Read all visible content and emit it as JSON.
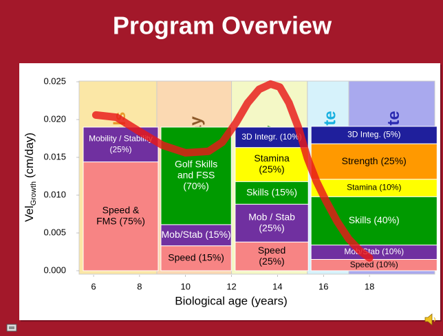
{
  "chart_data": {
    "type": "block",
    "title": "Program Overview",
    "y_label": "Vel",
    "y_label_sub": "Growth",
    "y_label_unit": " (cm/day)",
    "x_label": "Biological age (years)",
    "xlim": [
      5.37,
      20.84
    ],
    "ylim": [
      0,
      0.025
    ],
    "xticks": [
      6,
      8,
      10,
      12,
      14,
      16,
      18
    ],
    "yticks": [
      {
        "value": 0,
        "label": "0.000"
      },
      {
        "value": 0.005,
        "label": "0.005"
      },
      {
        "value": 0.01,
        "label": "0.010"
      },
      {
        "value": 0.015,
        "label": "0.015"
      },
      {
        "value": 0.02,
        "label": "0.020"
      },
      {
        "value": 0.025,
        "label": "0.025"
      }
    ],
    "phases": [
      {
        "label": "als",
        "color": "#fbe7a6",
        "text_color": "#e89a2c",
        "x": [
          5.37,
          8.75
        ]
      },
      {
        "label": "ay",
        "color": "#fbd9b2",
        "text_color": "#8d5a2b",
        "x": [
          8.75,
          12.0
        ]
      },
      {
        "label": "y",
        "color": "#f4f8c6",
        "text_color": "#2f9a2f",
        "x": [
          12.0,
          15.3
        ]
      },
      {
        "label": "ete",
        "color": "#d6f2fb",
        "text_color": "#18b0e0",
        "x": [
          15.3,
          17.1
        ]
      },
      {
        "label": "ete",
        "color": "#a9a9ee",
        "text_color": "#2a2ab0",
        "x": [
          17.1,
          20.84
        ]
      }
    ],
    "groups": [
      {
        "x": [
          5.49,
          8.87
        ],
        "segments": [
          {
            "label": [
              "Speed &",
              "FMS (75%)"
            ],
            "color": "#f78484",
            "text_color": "#000000",
            "value": 0.0144
          },
          {
            "label": [
              "Mobility / Stability",
              "(25%)"
            ],
            "color": "#7030a0",
            "text_color": "#ffffff",
            "value": 0.0046
          }
        ]
      },
      {
        "x": [
          8.87,
          12.05
        ],
        "segments": [
          {
            "label": [
              "Speed (15%)"
            ],
            "color": "#f78484",
            "text_color": "#000000",
            "value": 0.0033
          },
          {
            "label": [
              "Mob/Stab (15%)"
            ],
            "color": "#7030a0",
            "text_color": "#ffffff",
            "value": 0.0028
          },
          {
            "label": [
              "Golf Skills",
              "and FSS",
              "(70%)"
            ],
            "color": "#009a00",
            "text_color": "#ffffff",
            "value": 0.0129
          }
        ]
      },
      {
        "x": [
          12.1,
          15.4
        ],
        "segments": [
          {
            "label": [
              "Speed",
              "(25%)"
            ],
            "color": "#f78484",
            "text_color": "#000000",
            "value": 0.0038
          },
          {
            "label": [
              "Mob / Stab",
              "(25%)"
            ],
            "color": "#7030a0",
            "text_color": "#ffffff",
            "value": 0.005
          },
          {
            "label": [
              "Skills (15%)"
            ],
            "color": "#009a00",
            "text_color": "#ffffff",
            "value": 0.003
          },
          {
            "label": [
              "Stamina",
              "(25%)"
            ],
            "color": "#ffff00",
            "text_color": "#000000",
            "value": 0.0045
          },
          {
            "label": [
              "3D Integr. (10%)"
            ],
            "color": "#1f1f9c",
            "text_color": "#ffffff",
            "value": 0.0027
          }
        ]
      },
      {
        "x": [
          15.4,
          21.0
        ],
        "segments": [
          {
            "label": [
              "Speed (10%)"
            ],
            "color": "#f78484",
            "text_color": "#000000",
            "value": 0.0015
          },
          {
            "label": [
              "Mob/Stab (10%)"
            ],
            "color": "#7030a0",
            "text_color": "#ffffff",
            "value": 0.0019
          },
          {
            "label": [
              "Skills (40%)"
            ],
            "color": "#009a00",
            "text_color": "#ffffff",
            "value": 0.0064
          },
          {
            "label": [
              "Stamina (10%)"
            ],
            "color": "#ffff00",
            "text_color": "#000000",
            "value": 0.0023
          },
          {
            "label": [
              "Strength (25%)"
            ],
            "color": "#ff9900",
            "text_color": "#000000",
            "value": 0.0047
          },
          {
            "label": [
              "3D Integ. (5%)"
            ],
            "color": "#1f1f9c",
            "text_color": "#ffffff",
            "value": 0.0023
          }
        ]
      }
    ],
    "curve": {
      "color": "#e81818",
      "x": [
        6.1,
        7.0,
        7.9,
        9.0,
        10.0,
        11.0,
        11.6,
        12.2,
        12.7,
        13.2,
        13.7,
        14.1,
        14.5,
        14.9,
        15.3,
        15.7,
        16.1,
        16.6,
        17.1,
        17.6,
        18.0
      ],
      "values": [
        0.0206,
        0.0203,
        0.0186,
        0.0166,
        0.0156,
        0.0158,
        0.017,
        0.0196,
        0.0222,
        0.024,
        0.0247,
        0.0243,
        0.0222,
        0.019,
        0.0149,
        0.0118,
        0.0093,
        0.0065,
        0.0042,
        0.0026,
        0.0017
      ]
    }
  }
}
